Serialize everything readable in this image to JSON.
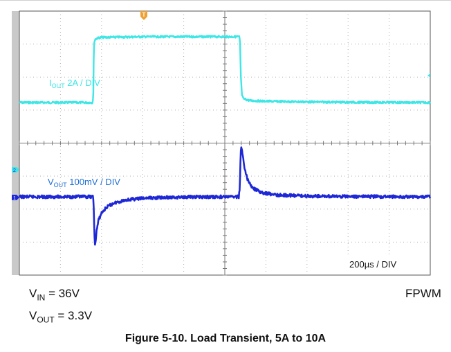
{
  "chart_data": {
    "type": "line",
    "title": "Figure 5-10. Load Transient, 5A to 10A",
    "x": {
      "unit": "µs",
      "range": [
        0,
        2000
      ]
    },
    "series": [
      {
        "name": "IOUT",
        "label_main": "I",
        "label_sub": "OUT",
        "label_rest": " 2A / DIV",
        "channel_marker": "",
        "color": "#3ee6e6",
        "unit": "A",
        "points": [
          [
            0,
            5
          ],
          [
            357,
            5
          ],
          [
            360,
            5.7
          ],
          [
            363,
            9.5
          ],
          [
            369,
            9.8
          ],
          [
            380,
            9.9
          ],
          [
            400,
            9.95
          ],
          [
            600,
            10.0
          ],
          [
            800,
            10.0
          ],
          [
            1000,
            10.0
          ],
          [
            1071,
            10.0
          ],
          [
            1074,
            9.5
          ],
          [
            1078,
            7.0
          ],
          [
            1083,
            5.6
          ],
          [
            1090,
            5.3
          ],
          [
            1120,
            5.15
          ],
          [
            1200,
            5.1
          ],
          [
            1400,
            5.05
          ],
          [
            1600,
            5.02
          ],
          [
            2000,
            5.0
          ]
        ]
      },
      {
        "name": "VOUT",
        "label_main": "V",
        "label_sub": "OUT",
        "label_rest": " 100mV / DIV",
        "channel_marker": "1",
        "color": "#1d27d6",
        "unit": "mV",
        "points": [
          [
            0,
            0
          ],
          [
            359,
            0
          ],
          [
            362,
            -40
          ],
          [
            367,
            -200
          ],
          [
            370,
            -188
          ],
          [
            376,
            -135
          ],
          [
            385,
            -95
          ],
          [
            400,
            -65
          ],
          [
            425,
            -42
          ],
          [
            460,
            -25
          ],
          [
            520,
            -12
          ],
          [
            620,
            -5
          ],
          [
            800,
            -1
          ],
          [
            1000,
            0
          ],
          [
            1068,
            0
          ],
          [
            1073,
            40
          ],
          [
            1077,
            180
          ],
          [
            1081,
            200
          ],
          [
            1086,
            170
          ],
          [
            1095,
            120
          ],
          [
            1110,
            70
          ],
          [
            1135,
            35
          ],
          [
            1180,
            16
          ],
          [
            1260,
            7
          ],
          [
            1400,
            3
          ],
          [
            1600,
            1
          ],
          [
            2000,
            0
          ]
        ]
      }
    ],
    "annotations": {
      "timebase": "200µs / DIV",
      "trigger_marker": "T",
      "ch2_marker": "2"
    },
    "below": {
      "vin_main": "V",
      "vin_sub": "IN",
      "vin_rest": " = 36V",
      "vout_main": "V",
      "vout_sub": "OUT",
      "vout_rest": " = 3.3V",
      "mode": "FPWM"
    }
  }
}
